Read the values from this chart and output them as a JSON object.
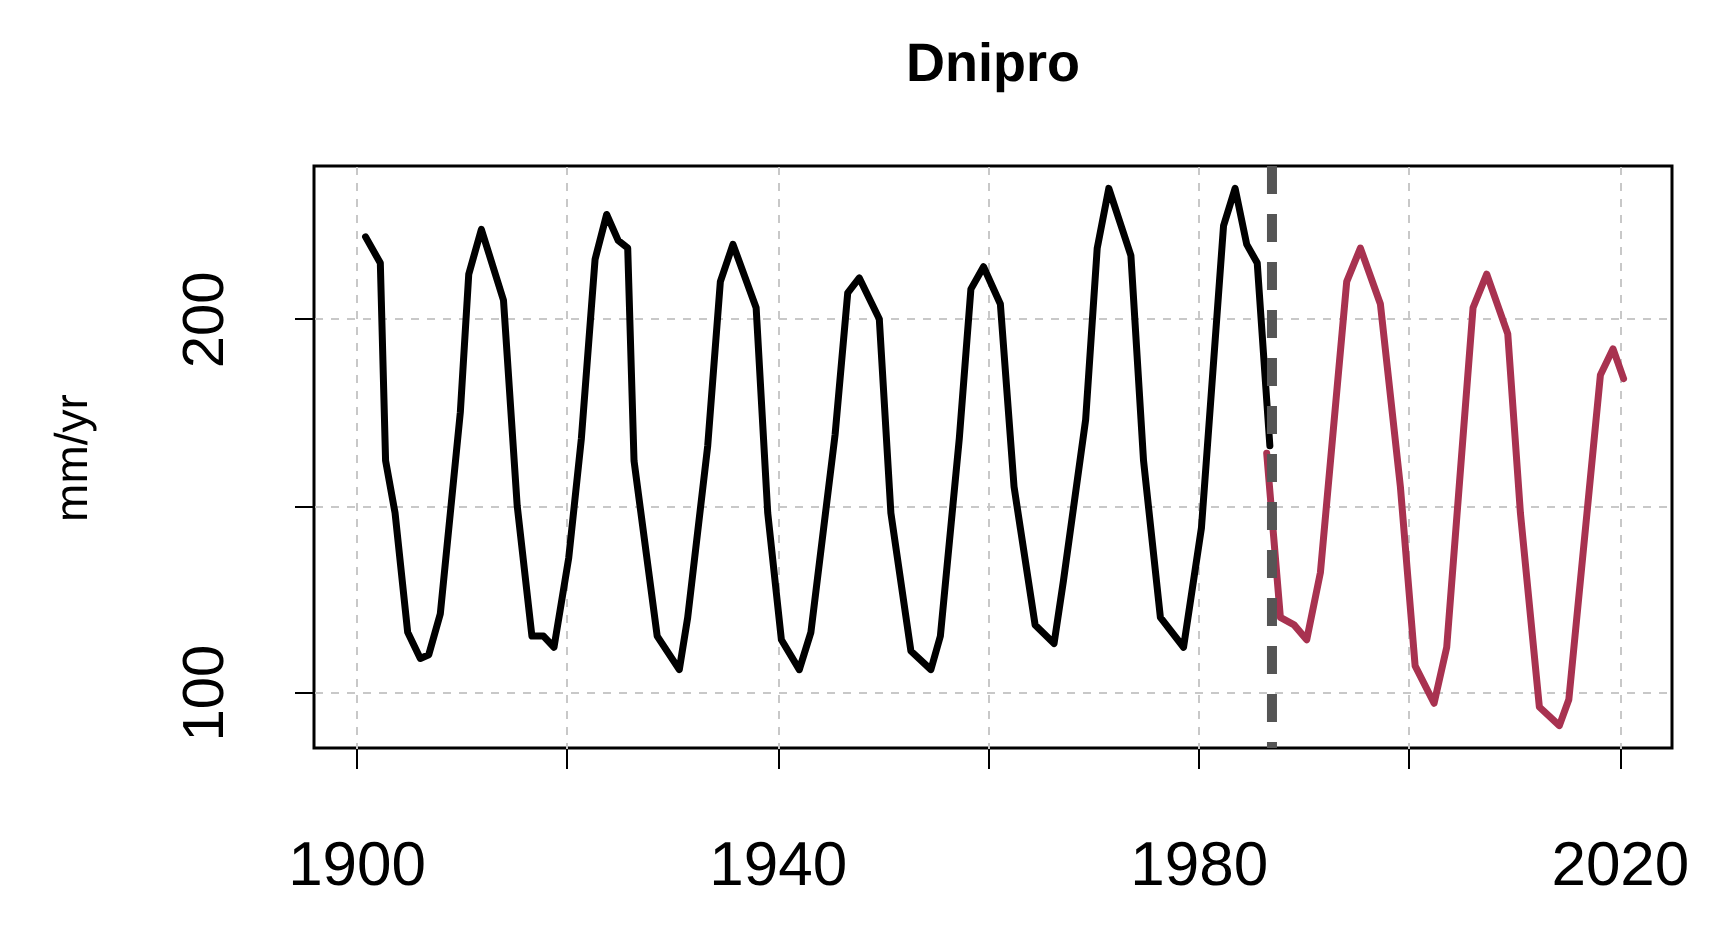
{
  "chart_data": {
    "type": "line",
    "title": "Dnipro",
    "ylabel": "mm/yr",
    "xlim": [
      1896,
      2025
    ],
    "ylim": [
      85,
      241
    ],
    "xticks": [
      1900,
      {
        "value": 1920,
        "label": null
      },
      1940,
      {
        "value": 1960,
        "label": null
      },
      1980,
      {
        "value": 2000,
        "label": null
      },
      2020
    ],
    "yticks": [
      100,
      {
        "value": 150,
        "label": null
      },
      200
    ],
    "grid": true,
    "line_style": "solid",
    "series": [
      {
        "color": "#000000",
        "x": [
          1900.9,
          1902.3,
          1902.8,
          1903.7,
          1904.9,
          1906.1,
          1906.9,
          1908.0,
          1909.9,
          1910.7,
          1911.9,
          1914.0,
          1915.3,
          1916.7,
          1917.8,
          1918.8,
          1920.2,
          1921.4,
          1922.7,
          1923.8,
          1924.9,
          1925.8,
          1926.4,
          1928.6,
          1930.7,
          1931.5,
          1933.4,
          1934.6,
          1935.8,
          1938.0,
          1939.1,
          1940.4,
          1942.1,
          1943.2,
          1945.5,
          1946.7,
          1947.8,
          1949.7,
          1950.8,
          1952.7,
          1954.6,
          1955.5,
          1957.3,
          1958.4,
          1959.6,
          1961.2,
          1962.5,
          1964.5,
          1966.3,
          1967.2,
          1969.3,
          1970.4,
          1971.5,
          1973.6,
          1974.8,
          1976.4,
          1978.6,
          1980.3,
          1982.4,
          1983.5,
          1984.6,
          1985.6,
          1986.8
        ],
        "values": [
          222,
          215,
          162,
          148,
          116,
          109,
          110,
          121,
          175,
          212,
          224,
          205,
          150,
          115,
          115,
          112,
          136,
          168,
          216,
          228,
          221,
          219,
          162,
          115,
          106,
          120,
          166,
          210,
          220,
          203,
          148,
          114,
          106,
          116,
          169,
          207,
          211,
          200,
          148,
          111,
          106,
          115,
          168,
          208,
          214,
          204,
          155,
          118,
          113,
          130,
          173,
          219,
          235,
          217,
          162,
          120,
          112,
          144,
          225,
          235,
          220,
          215,
          166
        ]
      },
      {
        "color": "#a83250",
        "x": [
          1986.5,
          1987.8,
          1989.1,
          1990.3,
          1991.6,
          1994.1,
          1995.4,
          1997.3,
          1999.2,
          2000.6,
          2002.4,
          2003.6,
          2006.1,
          2007.4,
          2009.4,
          2010.6,
          2012.4,
          2014.3,
          2015.2,
          2018.2,
          2019.4,
          2020.4
        ],
        "values": [
          164,
          120,
          118,
          114,
          132,
          210,
          219,
          204,
          155,
          107,
          97,
          112,
          203,
          212,
          196,
          148,
          96,
          91,
          98,
          185,
          192,
          184
        ]
      }
    ],
    "ref_lines": [
      {
        "axis": "x",
        "value": 1987,
        "color": "#555555",
        "line_style": "dashed"
      }
    ]
  }
}
